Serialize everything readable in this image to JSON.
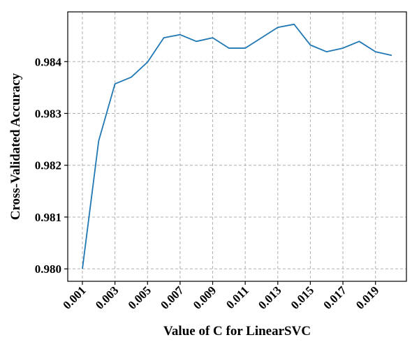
{
  "chart_data": {
    "type": "line",
    "title": "",
    "xlabel": "Value of C for LinearSVC",
    "ylabel": "Cross-Validated Accuracy",
    "x": [
      0.001,
      0.002,
      0.003,
      0.004,
      0.005,
      0.006,
      0.007,
      0.008,
      0.009,
      0.01,
      0.011,
      0.012,
      0.013,
      0.014,
      0.015,
      0.016,
      0.017,
      0.018,
      0.019,
      0.02
    ],
    "series": [
      {
        "color": "#1f77b4",
        "values": [
          0.98,
          0.98247,
          0.98357,
          0.9837,
          0.98399,
          0.98446,
          0.98452,
          0.98439,
          0.98446,
          0.98426,
          0.98426,
          0.98446,
          0.98466,
          0.98472,
          0.98432,
          0.98419,
          0.98426,
          0.98439,
          0.98419,
          0.98412
        ]
      }
    ],
    "xticks": [
      0.001,
      0.003,
      0.005,
      0.007,
      0.009,
      0.011,
      0.013,
      0.015,
      0.017,
      0.019
    ],
    "xtick_labels": [
      "0.001",
      "0.003",
      "0.005",
      "0.007",
      "0.009",
      "0.011",
      "0.013",
      "0.015",
      "0.017",
      "0.019"
    ],
    "yticks": [
      0.98,
      0.981,
      0.982,
      0.983,
      0.984
    ],
    "ytick_labels": [
      "0.980",
      "0.981",
      "0.982",
      "0.983",
      "0.984"
    ],
    "xlim": [
      0.0001,
      0.0209
    ],
    "ylim": [
      0.97976,
      0.98496
    ],
    "grid": true,
    "grid_style": "dashed",
    "legend": "none"
  }
}
